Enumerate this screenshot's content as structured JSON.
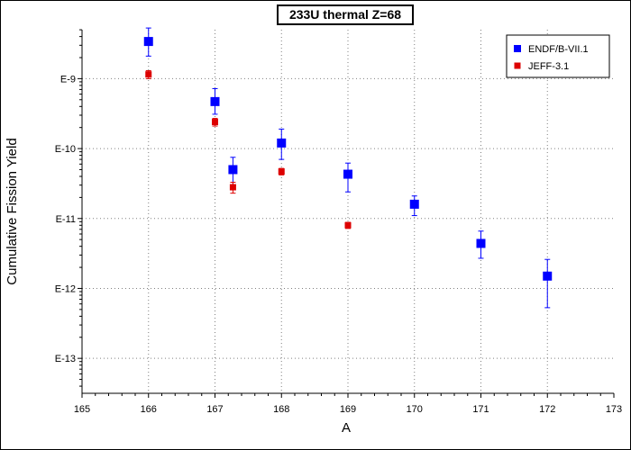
{
  "chart_data": {
    "type": "scatter",
    "title": "233U thermal Z=68",
    "xlabel": "A",
    "ylabel": "Cumulative Fission Yield",
    "xlim": [
      165,
      173
    ],
    "ylim_log10": [
      -13.5,
      -8.3
    ],
    "yscale": "log",
    "x_ticks": [
      165,
      166,
      167,
      168,
      169,
      170,
      171,
      172,
      173
    ],
    "y_ticks": [
      {
        "exp": -9,
        "label": "E-9"
      },
      {
        "exp": -10,
        "label": "E-10"
      },
      {
        "exp": -11,
        "label": "E-11"
      },
      {
        "exp": -12,
        "label": "E-12"
      },
      {
        "exp": -13,
        "label": "E-13"
      }
    ],
    "grid": true,
    "legend_position": "top-right",
    "series": [
      {
        "name": "ENDF/B-VII.1",
        "color": "#0000ff",
        "marker": "square",
        "points": [
          {
            "x": 166.0,
            "y": 3.4e-09,
            "lo": 2.1e-09,
            "hi": 5.3e-09
          },
          {
            "x": 167.0,
            "y": 4.7e-10,
            "lo": 3.1e-10,
            "hi": 7.2e-10
          },
          {
            "x": 167.27,
            "y": 5e-11,
            "lo": 3e-11,
            "hi": 7.5e-11
          },
          {
            "x": 168.0,
            "y": 1.2e-10,
            "lo": 7e-11,
            "hi": 1.9e-10
          },
          {
            "x": 169.0,
            "y": 4.3e-11,
            "lo": 2.4e-11,
            "hi": 6.2e-11
          },
          {
            "x": 170.0,
            "y": 1.6e-11,
            "lo": 1.1e-11,
            "hi": 2.1e-11
          },
          {
            "x": 171.0,
            "y": 4.4e-12,
            "lo": 2.7e-12,
            "hi": 6.6e-12
          },
          {
            "x": 172.0,
            "y": 1.5e-12,
            "lo": 5.3e-13,
            "hi": 2.6e-12
          }
        ]
      },
      {
        "name": "JEFF-3.1",
        "color": "#dd0000",
        "marker": "square",
        "points": [
          {
            "x": 166.0,
            "y": 1.15e-09,
            "lo": 1e-09,
            "hi": 1.3e-09
          },
          {
            "x": 167.0,
            "y": 2.4e-10,
            "lo": 2.1e-10,
            "hi": 2.7e-10
          },
          {
            "x": 167.27,
            "y": 2.8e-11,
            "lo": 2.3e-11,
            "hi": 3.3e-11
          },
          {
            "x": 168.0,
            "y": 4.7e-11,
            "lo": 4.2e-11,
            "hi": 5.2e-11
          },
          {
            "x": 169.0,
            "y": 8e-12,
            "lo": 7.2e-12,
            "hi": 8.8e-12
          }
        ]
      }
    ]
  }
}
